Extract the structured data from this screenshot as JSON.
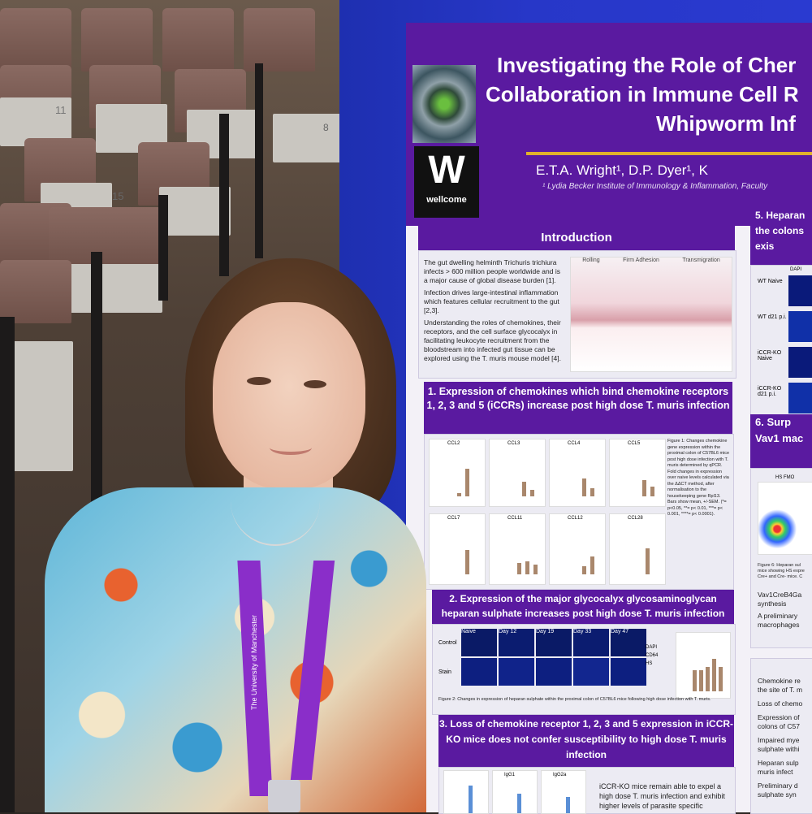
{
  "poster": {
    "title_line1": "Investigating the Role of Cher",
    "title_line2": "Collaboration in Immune Cell R",
    "title_line3": "Whipworm Inf",
    "authors": "E.T.A. Wright¹, D.P. Dyer¹, K",
    "affiliation": "¹ Lydia Becker Institute of  Immunology & Inflammation, Faculty",
    "logo_text": "wellcome",
    "logo_letter": "W",
    "intro": {
      "heading": "Introduction",
      "bullets": [
        "The gut dwelling helminth Trichuris trichiura infects > 600 million people worldwide and is a major cause of global disease burden [1].",
        "Infection drives large-intestinal inflammation which features cellular recruitment to the gut [2,3].",
        "Understanding the roles of chemokines, their receptors, and the cell surface glycocalyx in facilitating leukocyte recruitment from the bloodstream into infected gut tissue can be explored using the T. muris mouse model [4]."
      ],
      "diagram_labels": [
        "Rolling",
        "Firm Adhesion",
        "Transmigration"
      ]
    },
    "section1": {
      "heading": "1.    Expression of chemokines which bind chemokine receptors 1, 2, 3 and 5 (iCCRs) increase post high dose T. muris infection",
      "panels": [
        "CCL2",
        "CCL3",
        "CCL4",
        "CCL5",
        "CCL7",
        "CCL11",
        "CCL12",
        "CCL28"
      ],
      "caption": "Figure 1: Changes chemokine gene expression within the proximal colon of C57BL6 mice post high dose infection with T. muris determined by qPCR. Fold changes in expression over naive levels calculated via the ΔΔCT method, after normalisation to the housekeeping gene Rpl13. Bars show mean, +/-SEM. (*= p<0.05, **= p< 0.01, ***= p< 0.001, ****= p< 0.0001)."
    },
    "section2": {
      "heading": "2. Expression of the major glycocalyx glycosaminoglycan heparan sulphate increases post high dose T. muris infection",
      "columns": [
        "Naive",
        "Day 12",
        "Day 19",
        "Day 33",
        "Day 47"
      ],
      "rows": [
        "Control",
        "Stain"
      ],
      "legend": [
        "DAPI",
        "CD64",
        "HS"
      ],
      "caption": "Figure 2: Changes in expression of heparan sulphate within the proximal colon of C57BL6 mice following high dose infection with T. muris."
    },
    "section3": {
      "heading": "3. Loss of chemokine receptor 1, 2, 3 and 5 expression in iCCR-KO mice does not confer susceptibility to high dose T. muris infection",
      "text": "iCCR-KO mice remain able to expel a high dose T. muris infection and exhibit higher levels of parasite specific",
      "panel_labels": [
        "IgG1",
        "IgG2a"
      ]
    },
    "section5": {
      "heading": "5. Heparan the colons exis",
      "rows": [
        "WT Naive",
        "WT d21 p.i.",
        "iCCR-KO Naive",
        "iCCR-KO d21 p.i."
      ],
      "col": "DAPI"
    },
    "section6": {
      "heading": "6. Surp Vav1 mac",
      "plot_label": "HS FMO",
      "caption": "Figure 6: Heparan sul mice showing HS expre Cre+ and Cre- mice. C",
      "bullets": [
        "Vav1CreB4Ga synthesis",
        "A preliminary macrophages"
      ]
    },
    "conclusions": [
      "Chemokine re the site of T. m",
      "Loss of chemo",
      "Expression of colons of C57",
      "Impaired mye sulphate withi",
      "Heparan sulp muris infect",
      "Preliminary d sulphate syn"
    ]
  },
  "lanyard_text": "The University of Manchester",
  "seat_numbers": [
    "11",
    "15",
    "8"
  ],
  "colors": {
    "poster_purple": "#5a1aa0",
    "board_blue": "#2737c8",
    "gold": "#e1b12c"
  }
}
